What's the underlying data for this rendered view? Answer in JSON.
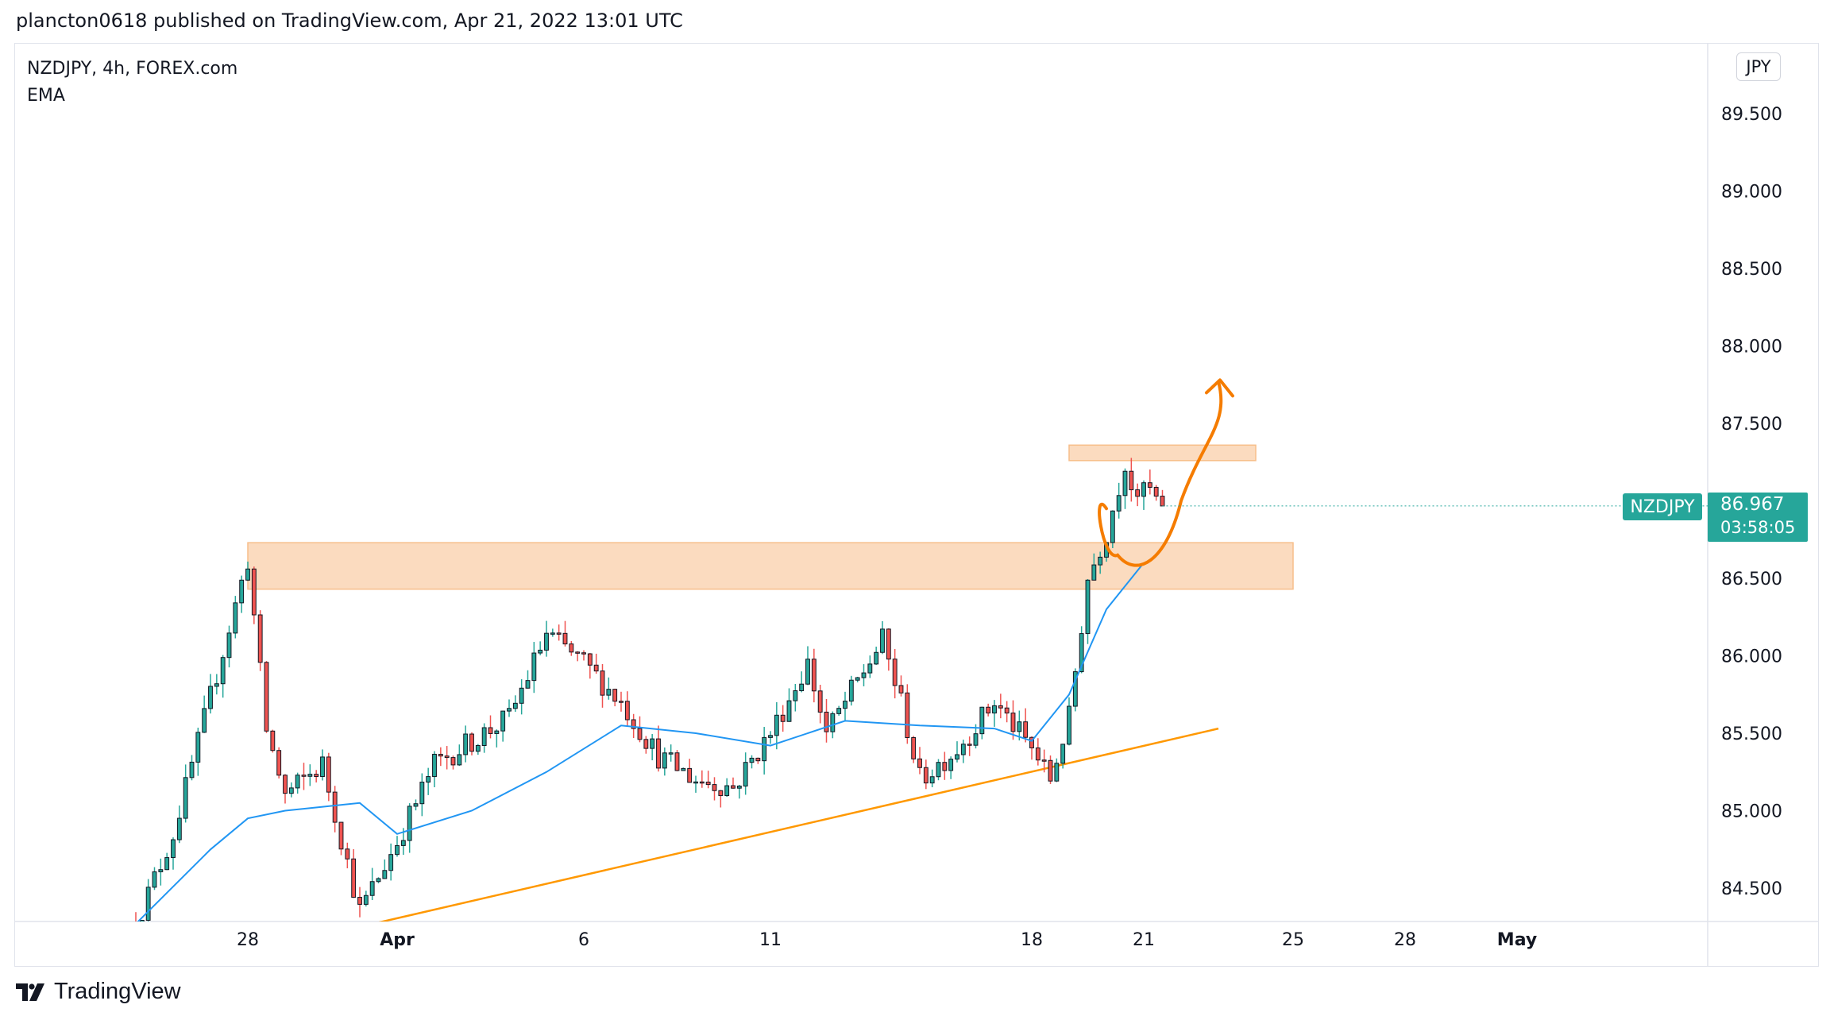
{
  "header": {
    "published_text": "plancton0618 published on TradingView.com, Apr 21, 2022 13:01 UTC"
  },
  "legend": {
    "symbol_line": "NZDJPY, 4h, FOREX.com",
    "indicator": "EMA"
  },
  "currency": "JPY",
  "current_price": {
    "symbol": "NZDJPY",
    "price": "86.967",
    "countdown": "03:58:05"
  },
  "branding": {
    "name": "TradingView"
  },
  "colors": {
    "up": "#26a69a",
    "down": "#ef5350",
    "ema": "#2196f3",
    "zone": "#f7be8a",
    "trendline": "#ff9800",
    "drawing": "#f57c00"
  },
  "chart_data": {
    "type": "candlestick",
    "symbol": "NZDJPY",
    "timeframe": "4h",
    "y_axis": {
      "ticks": [
        84.5,
        85.0,
        85.5,
        86.0,
        86.5,
        87.0,
        87.5,
        88.0,
        88.5,
        89.0,
        89.5
      ],
      "tick_labels": [
        "84.500",
        "85.000",
        "85.500",
        "86.000",
        "86.500",
        "87.000",
        "87.500",
        "88.000",
        "88.500",
        "89.000",
        "89.500"
      ],
      "range": [
        84.27,
        89.9
      ]
    },
    "x_axis": {
      "ticks": [
        {
          "label": "28",
          "date": "2022-03-28"
        },
        {
          "label": "Apr",
          "date": "2022-04-01"
        },
        {
          "label": "6",
          "date": "2022-04-06"
        },
        {
          "label": "11",
          "date": "2022-04-11"
        },
        {
          "label": "18",
          "date": "2022-04-18"
        },
        {
          "label": "21",
          "date": "2022-04-21"
        },
        {
          "label": "25",
          "date": "2022-04-25"
        },
        {
          "label": "28",
          "date": "2022-04-28"
        },
        {
          "label": "May",
          "date": "2022-05-01"
        }
      ]
    },
    "current_price": 86.967,
    "zones": [
      {
        "name": "support-zone",
        "from": "2022-03-28",
        "to": "2022-04-25",
        "price_low": 86.43,
        "price_high": 86.73
      },
      {
        "name": "resistance-zone",
        "from": "2022-04-19",
        "to": "2022-04-24",
        "price_low": 87.26,
        "price_high": 87.36
      }
    ],
    "trendline": {
      "from": {
        "date": "2022-03-31",
        "price": 84.25
      },
      "to": {
        "date": "2022-04-23",
        "price": 85.53
      }
    },
    "anchors": [
      {
        "date": "2022-03-25",
        "price": 84.27
      },
      {
        "date": "2022-03-26",
        "price": 84.85
      },
      {
        "date": "2022-03-28",
        "price": 86.62
      },
      {
        "date": "2022-03-28",
        "price": 85.52
      },
      {
        "date": "2022-03-29",
        "price": 85.1
      },
      {
        "date": "2022-03-30",
        "price": 85.3
      },
      {
        "date": "2022-03-31",
        "price": 84.35
      },
      {
        "date": "2022-04-01",
        "price": 84.8
      },
      {
        "date": "2022-04-02",
        "price": 85.3
      },
      {
        "date": "2022-04-04",
        "price": 85.6
      },
      {
        "date": "2022-04-05",
        "price": 86.14
      },
      {
        "date": "2022-04-06",
        "price": 85.95
      },
      {
        "date": "2022-04-07",
        "price": 85.7
      },
      {
        "date": "2022-04-08",
        "price": 85.35
      },
      {
        "date": "2022-04-09",
        "price": 85.2
      },
      {
        "date": "2022-04-10",
        "price": 85.15
      },
      {
        "date": "2022-04-11",
        "price": 85.5
      },
      {
        "date": "2022-04-12",
        "price": 85.95
      },
      {
        "date": "2022-04-12",
        "price": 85.5
      },
      {
        "date": "2022-04-13",
        "price": 85.7
      },
      {
        "date": "2022-04-14",
        "price": 86.1
      },
      {
        "date": "2022-04-14",
        "price": 85.7
      },
      {
        "date": "2022-04-15",
        "price": 85.2
      },
      {
        "date": "2022-04-16",
        "price": 85.4
      },
      {
        "date": "2022-04-17",
        "price": 85.7
      },
      {
        "date": "2022-04-18",
        "price": 85.4
      },
      {
        "date": "2022-04-18",
        "price": 85.2
      },
      {
        "date": "2022-04-19",
        "price": 85.6
      },
      {
        "date": "2022-04-19",
        "price": 86.5
      },
      {
        "date": "2022-04-20",
        "price": 86.8
      },
      {
        "date": "2022-04-20",
        "price": 87.25
      },
      {
        "date": "2022-04-20",
        "price": 86.95
      },
      {
        "date": "2022-04-21",
        "price": 87.1
      },
      {
        "date": "2022-04-21",
        "price": 86.96
      }
    ],
    "ema_anchors": [
      {
        "date": "2022-03-25",
        "price": 84.27
      },
      {
        "date": "2022-03-27",
        "price": 84.75
      },
      {
        "date": "2022-03-28",
        "price": 84.95
      },
      {
        "date": "2022-03-29",
        "price": 85.0
      },
      {
        "date": "2022-03-31",
        "price": 85.05
      },
      {
        "date": "2022-04-01",
        "price": 84.85
      },
      {
        "date": "2022-04-03",
        "price": 85.0
      },
      {
        "date": "2022-04-05",
        "price": 85.25
      },
      {
        "date": "2022-04-07",
        "price": 85.55
      },
      {
        "date": "2022-04-09",
        "price": 85.5
      },
      {
        "date": "2022-04-11",
        "price": 85.42
      },
      {
        "date": "2022-04-13",
        "price": 85.58
      },
      {
        "date": "2022-04-15",
        "price": 85.55
      },
      {
        "date": "2022-04-17",
        "price": 85.53
      },
      {
        "date": "2022-04-18",
        "price": 85.45
      },
      {
        "date": "2022-04-19",
        "price": 85.75
      },
      {
        "date": "2022-04-20",
        "price": 86.3
      },
      {
        "date": "2022-04-21",
        "price": 86.6
      }
    ]
  }
}
